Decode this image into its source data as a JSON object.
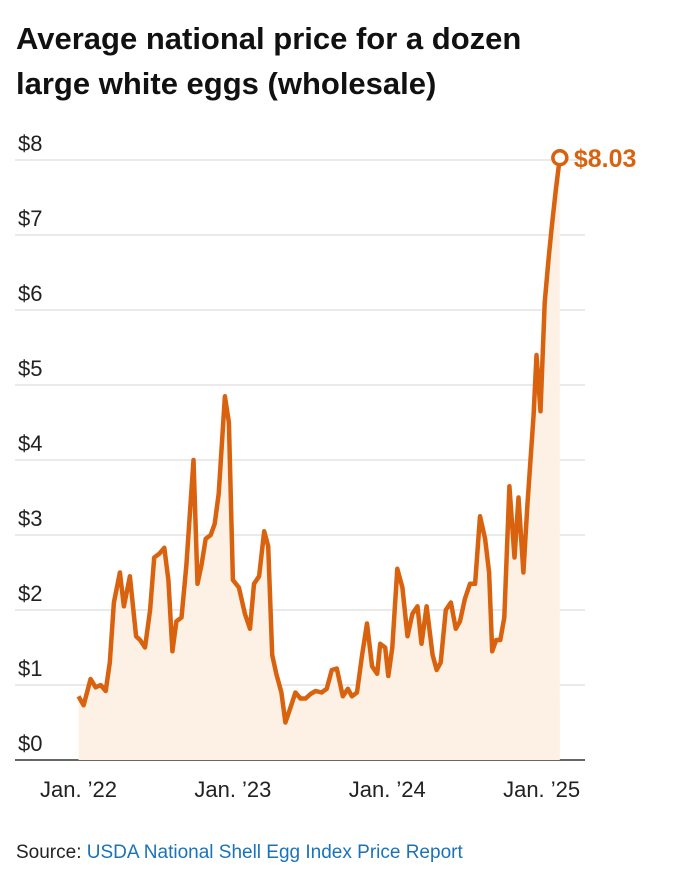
{
  "chart_data": {
    "type": "line",
    "title": [
      "Average national price for a dozen",
      "large white eggs (wholesale)"
    ],
    "x": [
      2022.0,
      2022.033,
      2022.078,
      2022.111,
      2022.144,
      2022.176,
      2022.203,
      2022.229,
      2022.268,
      2022.294,
      2022.333,
      2022.373,
      2022.399,
      2022.431,
      2022.464,
      2022.49,
      2022.523,
      2022.556,
      2022.582,
      2022.608,
      2022.634,
      2022.667,
      2022.699,
      2022.745,
      2022.771,
      2022.797,
      2022.824,
      2022.856,
      2022.882,
      2022.908,
      2022.948,
      2022.974,
      2023.0,
      2023.039,
      2023.078,
      2023.111,
      2023.137,
      2023.17,
      2023.203,
      2023.229,
      2023.255,
      2023.281,
      2023.314,
      2023.34,
      2023.373,
      2023.405,
      2023.438,
      2023.471,
      2023.503,
      2023.536,
      2023.575,
      2023.608,
      2023.641,
      2023.673,
      2023.712,
      2023.745,
      2023.771,
      2023.804,
      2023.837,
      2023.869,
      2023.902,
      2023.935,
      2023.954,
      2023.987,
      2024.007,
      2024.033,
      2024.065,
      2024.098,
      2024.131,
      2024.163,
      2024.196,
      2024.222,
      2024.255,
      2024.294,
      2024.32,
      2024.346,
      2024.379,
      2024.412,
      2024.444,
      2024.471,
      2024.503,
      2024.536,
      2024.569,
      2024.601,
      2024.634,
      2024.66,
      2024.68,
      2024.706,
      2024.732,
      2024.758,
      2024.791,
      2024.824,
      2024.85,
      2024.882,
      2024.908,
      2024.948,
      2024.967,
      2024.993,
      2025.02,
      2025.046,
      2025.065,
      2025.092,
      2025.118
    ],
    "values": [
      0.85,
      0.73,
      1.08,
      0.97,
      1.0,
      0.92,
      1.3,
      2.1,
      2.5,
      2.05,
      2.45,
      1.65,
      1.6,
      1.5,
      2.0,
      2.7,
      2.75,
      2.83,
      2.4,
      1.45,
      1.85,
      1.9,
      2.6,
      4.0,
      2.35,
      2.6,
      2.95,
      3.0,
      3.15,
      3.55,
      4.85,
      4.5,
      2.4,
      2.3,
      1.95,
      1.75,
      2.35,
      2.45,
      3.05,
      2.85,
      1.4,
      1.15,
      0.9,
      0.5,
      0.7,
      0.9,
      0.82,
      0.82,
      0.88,
      0.92,
      0.9,
      0.95,
      1.2,
      1.22,
      0.85,
      0.95,
      0.85,
      0.9,
      1.4,
      1.82,
      1.25,
      1.15,
      1.55,
      1.5,
      1.12,
      1.5,
      2.55,
      2.3,
      1.65,
      1.95,
      2.05,
      1.55,
      2.05,
      1.4,
      1.2,
      1.3,
      2.0,
      2.1,
      1.75,
      1.85,
      2.15,
      2.35,
      2.35,
      3.25,
      2.95,
      2.5,
      1.45,
      1.6,
      1.6,
      1.9,
      3.65,
      2.7,
      3.5,
      2.5,
      3.4,
      4.6,
      5.4,
      4.65,
      6.1,
      6.7,
      7.1,
      7.6,
      8.03
    ],
    "value_labels": [
      null,
      null,
      null,
      null,
      null,
      null,
      null,
      null,
      null,
      null,
      null,
      null,
      null,
      null,
      null,
      null,
      null,
      null,
      null,
      null,
      null,
      null,
      null,
      null,
      null,
      null,
      null,
      null,
      null,
      null,
      null,
      null,
      null,
      null,
      null,
      null,
      null,
      null,
      null,
      null,
      null,
      null,
      null,
      null,
      null,
      null,
      null,
      null,
      null,
      null,
      null,
      null,
      null,
      null,
      null,
      null,
      null,
      null,
      null,
      null,
      null,
      null,
      null,
      null,
      null,
      null,
      null,
      null,
      null,
      null,
      null,
      null,
      null,
      null,
      null,
      null,
      null,
      null,
      null,
      null,
      null,
      null,
      null,
      null,
      null,
      null,
      null,
      null,
      null,
      null,
      null,
      null,
      null,
      null,
      null,
      null,
      null,
      null,
      null,
      null,
      null,
      null,
      "$8.03"
    ],
    "color": "#d9620f",
    "fill": "#fdf1e6",
    "xlim": [
      2021.608,
      2025.281
    ],
    "xticks": [
      {
        "value": 2022,
        "label": "Jan. ’22"
      },
      {
        "value": 2023,
        "label": "Jan. ’23"
      },
      {
        "value": 2024,
        "label": "Jan. ’24"
      },
      {
        "value": 2025,
        "label": "Jan. ’25"
      }
    ],
    "ylim": [
      0,
      8.3
    ],
    "yticks": [
      {
        "value": 0,
        "label": "$0"
      },
      {
        "value": 1,
        "label": "$1"
      },
      {
        "value": 2,
        "label": "$2"
      },
      {
        "value": 3,
        "label": "$3"
      },
      {
        "value": 4,
        "label": "$4"
      },
      {
        "value": 5,
        "label": "$5"
      },
      {
        "value": 6,
        "label": "$6"
      },
      {
        "value": 7,
        "label": "$7"
      },
      {
        "value": 8,
        "label": "$8"
      }
    ],
    "grid": true,
    "source_label": "Source:",
    "source": "USDA National Shell Egg Index Price Report"
  }
}
